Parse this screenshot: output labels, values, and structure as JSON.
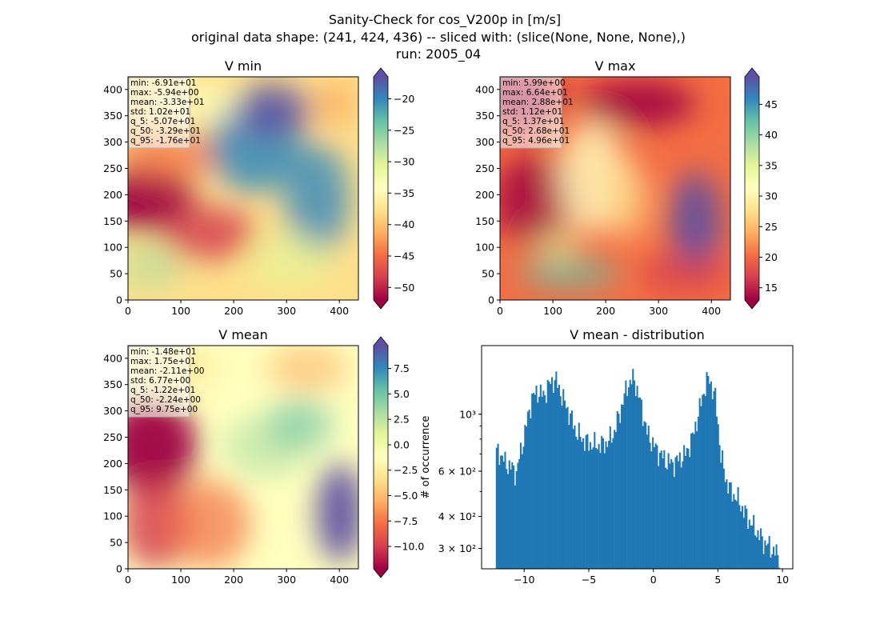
{
  "figure": {
    "title_lines": [
      "Sanity-Check for cos_V200p in [m/s]",
      "original data shape: (241, 424, 436) -- sliced with: (slice(None, None, None),)",
      "run: 2005_04"
    ]
  },
  "colormap": {
    "name": "Spectral",
    "stops": [
      "#9e0142",
      "#d53e4f",
      "#f46d43",
      "#fdae61",
      "#fee08b",
      "#ffffbf",
      "#e6f598",
      "#abdda4",
      "#66c2a5",
      "#3288bd",
      "#5e4fa2"
    ]
  },
  "chart_data": [
    {
      "type": "heatmap",
      "title": "V min",
      "x_ticks": [
        "0",
        "100",
        "200",
        "300",
        "400"
      ],
      "y_ticks": [
        "0",
        "50",
        "100",
        "150",
        "200",
        "250",
        "300",
        "350",
        "400"
      ],
      "xlim": [
        0,
        436
      ],
      "ylim": [
        0,
        424
      ],
      "colorbar_ticks": [
        "−20",
        "−25",
        "−30",
        "−35",
        "−40",
        "−45",
        "−50"
      ],
      "colorbar_range": [
        -52,
        -16.5
      ],
      "colorbar_extend": "both",
      "stats": [
        "min: -6.91e+01",
        "max: -5.94e+00",
        "mean: -3.33e+01",
        "std: 1.02e+01",
        "q_5: -5.07e+01",
        "q_50: -3.29e+01",
        "q_95: -1.76e+01"
      ]
    },
    {
      "type": "heatmap",
      "title": "V max",
      "x_ticks": [
        "0",
        "100",
        "200",
        "300",
        "400"
      ],
      "y_ticks": [
        "0",
        "50",
        "100",
        "150",
        "200",
        "250",
        "300",
        "350",
        "400"
      ],
      "xlim": [
        0,
        436
      ],
      "ylim": [
        0,
        424
      ],
      "colorbar_ticks": [
        "45",
        "40",
        "35",
        "30",
        "25",
        "20",
        "15"
      ],
      "colorbar_range": [
        13,
        49.5
      ],
      "colorbar_extend": "both",
      "stats": [
        "min: 5.99e+00",
        "max: 6.64e+01",
        "mean: 2.88e+01",
        "std: 1.12e+01",
        "q_5: 1.37e+01",
        "q_50: 2.68e+01",
        "q_95: 4.96e+01"
      ]
    },
    {
      "type": "heatmap",
      "title": "V mean",
      "x_ticks": [
        "0",
        "100",
        "200",
        "300",
        "400"
      ],
      "y_ticks": [
        "0",
        "50",
        "100",
        "150",
        "200",
        "250",
        "300",
        "350",
        "400"
      ],
      "xlim": [
        0,
        436
      ],
      "ylim": [
        0,
        424
      ],
      "colorbar_ticks": [
        "7.5",
        "5.0",
        "2.5",
        "0.0",
        "−2.5",
        "−5.0",
        "−7.5",
        "−10.0"
      ],
      "colorbar_range": [
        -12.2,
        9.75
      ],
      "colorbar_extend": "both",
      "stats": [
        "min: -1.48e+01",
        "max: 1.75e+01",
        "mean: -2.11e+00",
        "std: 6.77e+00",
        "q_5: -1.22e+01",
        "q_50: -2.24e+00",
        "q_95: 9.75e+00"
      ]
    },
    {
      "type": "bar",
      "title": "V mean - distribution",
      "ylabel": "# of occurrence",
      "yscale": "log",
      "xlim": [
        -13.3,
        10.8
      ],
      "ylim": [
        250,
        1850
      ],
      "x_ticks": [
        {
          "value": -10,
          "label": "−10"
        },
        {
          "value": -5,
          "label": "−5"
        },
        {
          "value": 0,
          "label": "0"
        },
        {
          "value": 5,
          "label": "5"
        },
        {
          "value": 10,
          "label": "10"
        }
      ],
      "y_ticks": [
        {
          "value": 300,
          "label": "3 × 10²"
        },
        {
          "value": 400,
          "label": "4 × 10²"
        },
        {
          "value": 600,
          "label": "6 × 10²"
        },
        {
          "value": 1000,
          "label": "10³"
        }
      ],
      "bar_color": "#1f77b4",
      "bin_start": -12.2,
      "bin_width": 0.11,
      "profile": [
        [
          -12.2,
          700
        ],
        [
          -12.0,
          720
        ],
        [
          -11.5,
          650
        ],
        [
          -11.0,
          620
        ],
        [
          -10.6,
          590
        ],
        [
          -10.0,
          820
        ],
        [
          -9.4,
          1150
        ],
        [
          -9.0,
          1230
        ],
        [
          -8.5,
          1180
        ],
        [
          -8.0,
          1320
        ],
        [
          -7.6,
          1370
        ],
        [
          -7.0,
          1150
        ],
        [
          -6.5,
          1000
        ],
        [
          -6.0,
          860
        ],
        [
          -5.5,
          800
        ],
        [
          -5.0,
          770
        ],
        [
          -4.5,
          760
        ],
        [
          -4.0,
          760
        ],
        [
          -3.5,
          780
        ],
        [
          -3.0,
          860
        ],
        [
          -2.5,
          1050
        ],
        [
          -2.0,
          1300
        ],
        [
          -1.5,
          1380
        ],
        [
          -1.0,
          1100
        ],
        [
          -0.5,
          850
        ],
        [
          0.0,
          760
        ],
        [
          0.5,
          700
        ],
        [
          1.0,
          660
        ],
        [
          1.5,
          640
        ],
        [
          2.0,
          670
        ],
        [
          2.5,
          700
        ],
        [
          3.0,
          800
        ],
        [
          3.5,
          1000
        ],
        [
          4.0,
          1280
        ],
        [
          4.3,
          1390
        ],
        [
          4.8,
          1150
        ],
        [
          5.2,
          700
        ],
        [
          5.6,
          560
        ],
        [
          6.0,
          500
        ],
        [
          6.5,
          470
        ],
        [
          7.0,
          420
        ],
        [
          7.5,
          380
        ],
        [
          8.0,
          350
        ],
        [
          8.5,
          320
        ],
        [
          9.0,
          305
        ],
        [
          9.4,
          290
        ],
        [
          9.75,
          280
        ]
      ]
    }
  ]
}
